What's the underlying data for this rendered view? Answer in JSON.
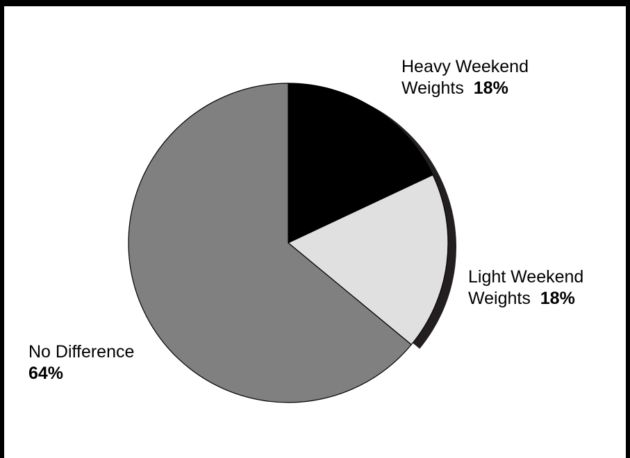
{
  "chart_data": {
    "type": "pie",
    "slices": [
      {
        "name_line1": "Heavy Weekend",
        "name_line2": "Weights",
        "value": 18,
        "value_label": "18%",
        "color": "#000000"
      },
      {
        "name_line1": "Light Weekend",
        "name_line2": "Weights",
        "value": 18,
        "value_label": "18%",
        "color": "#e0e0e0"
      },
      {
        "name_line1": "No Difference",
        "name_line2": "",
        "value": 64,
        "value_label": "64%",
        "color": "#808080"
      }
    ],
    "start_angle_deg": 0,
    "direction": "clockwise",
    "shadow_color": "#231f20",
    "legend": "none"
  }
}
